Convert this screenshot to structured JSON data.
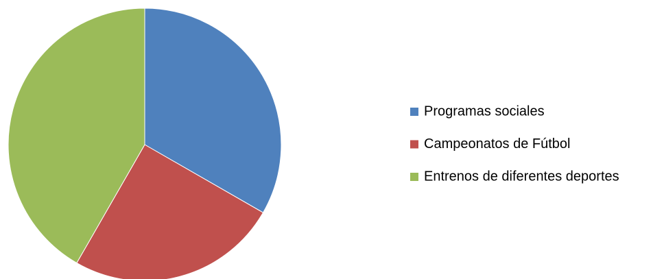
{
  "chart_data": {
    "type": "pie",
    "categories": [
      "Programas sociales",
      "Campeonatos de Fútbol",
      "Entrenos de diferentes deportes"
    ],
    "values": [
      33.3,
      25,
      41.7
    ],
    "colors": [
      "#4f81bd",
      "#c0504d",
      "#9bbb59"
    ],
    "legend": "right"
  }
}
